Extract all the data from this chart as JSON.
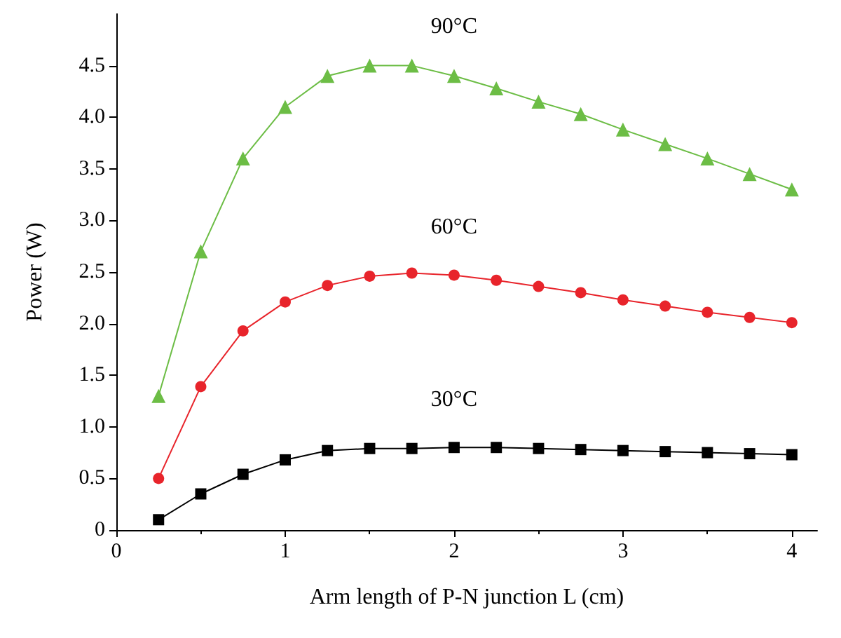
{
  "chart_data": {
    "type": "line",
    "xlabel": "Arm length of P-N junction L (cm)",
    "ylabel": "Power (W)",
    "x": [
      0.25,
      0.5,
      0.75,
      1,
      1.25,
      1.5,
      1.75,
      2,
      2.25,
      2.5,
      2.75,
      3,
      3.25,
      3.5,
      3.75,
      4
    ],
    "xlim": [
      0,
      4.15
    ],
    "xticks": [
      0,
      1,
      2,
      3,
      4
    ],
    "ylim": [
      0,
      5
    ],
    "yticks": [
      0,
      0.5,
      {
        "value": 1,
        "label": "1.0"
      },
      1.5,
      {
        "value": 2,
        "label": "2.0"
      },
      2.5,
      {
        "value": 3,
        "label": "3.0"
      },
      3.5,
      {
        "value": 4,
        "label": "4.0"
      },
      4.5
    ],
    "grid": false,
    "legend": false,
    "line_style": "solid",
    "series": [
      {
        "name": "90°C",
        "color": "#6cbd45",
        "marker": "triangle",
        "values": [
          1.3,
          2.7,
          3.6,
          4.1,
          4.4,
          4.5,
          4.5,
          4.4,
          4.28,
          4.15,
          4.03,
          3.88,
          3.74,
          3.6,
          3.45,
          3.3
        ]
      },
      {
        "name": "60°C",
        "color": "#e8242b",
        "marker": "circle",
        "values": [
          0.5,
          1.39,
          1.93,
          2.21,
          2.37,
          2.46,
          2.49,
          2.47,
          2.42,
          2.36,
          2.3,
          2.23,
          2.17,
          2.11,
          2.06,
          2.01
        ]
      },
      {
        "name": "30°C",
        "color": "#000000",
        "marker": "square",
        "values": [
          0.1,
          0.35,
          0.54,
          0.68,
          0.77,
          0.79,
          0.79,
          0.8,
          0.8,
          0.79,
          0.78,
          0.77,
          0.76,
          0.75,
          0.74,
          0.73
        ]
      }
    ]
  }
}
